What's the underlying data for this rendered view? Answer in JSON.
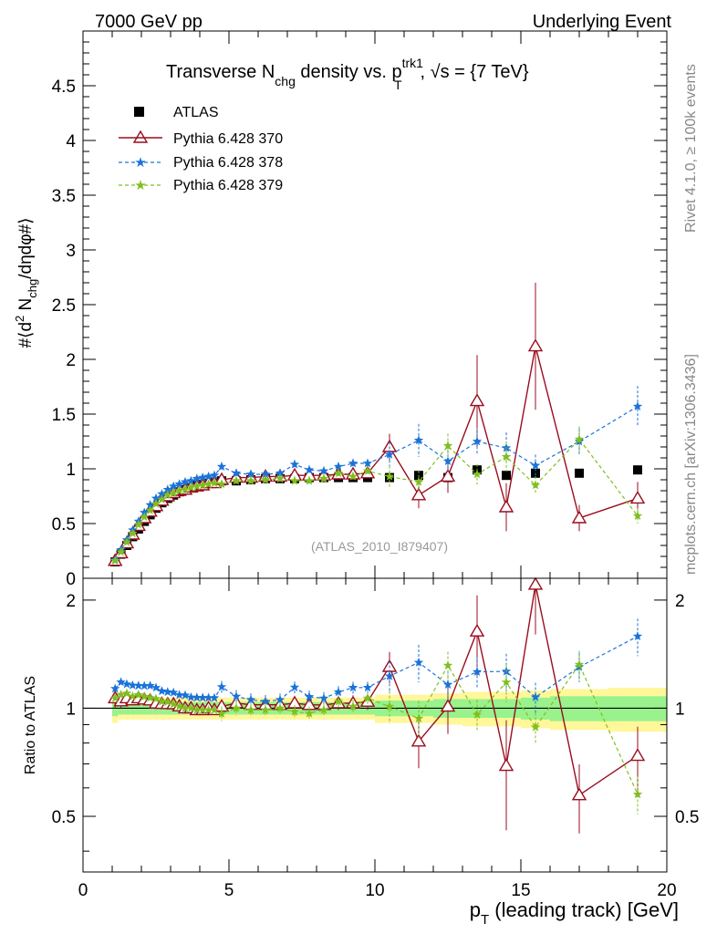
{
  "header": {
    "left": "7000 GeV pp",
    "right": "Underlying Event"
  },
  "side": {
    "rivet": "Rivet 4.1.0, ≥ 100k events",
    "mcplots": "mcplots.cern.ch [arXiv:1306.3436]"
  },
  "chart_data": {
    "type": "scatter",
    "title": {
      "part1": "Transverse N",
      "sub1": "chg",
      "part2": " density vs. p",
      "sup2": "trk1",
      "sub2": "T",
      "part3": ", √s = {7 TeV}"
    },
    "analysis_label": "(ATLAS_2010_I879407)",
    "xlabel": {
      "main": "p",
      "sub": "T",
      "rest": " (leading track) [GeV]"
    },
    "ylabel": {
      "p1": "#⟨d",
      "sup": "2",
      "p2": " N",
      "sub": "chg",
      "p3": "/dηdφ#⟩"
    },
    "ratio_ylabel": "Ratio to ATLAS",
    "xlim": [
      0,
      20
    ],
    "ylim_main": [
      0,
      5
    ],
    "ylim_ratio": [
      0.35,
      2.3
    ],
    "x_ticks": [
      "0",
      "5",
      "10",
      "15",
      "20"
    ],
    "y_ticks_main": [
      "0",
      "0.5",
      "1",
      "1.5",
      "2",
      "2.5",
      "3",
      "3.5",
      "4",
      "4.5"
    ],
    "y_ticks_ratio": [
      "0.5",
      "1",
      "2"
    ],
    "x": [
      1.1,
      1.3,
      1.5,
      1.7,
      1.9,
      2.1,
      2.3,
      2.5,
      2.7,
      2.9,
      3.1,
      3.3,
      3.5,
      3.7,
      3.9,
      4.1,
      4.3,
      4.5,
      4.75,
      5.25,
      5.75,
      6.25,
      6.75,
      7.25,
      7.75,
      8.25,
      8.75,
      9.25,
      9.75,
      10.5,
      11.5,
      12.5,
      13.5,
      14.5,
      15.5,
      17.0,
      19.0
    ],
    "x_err": [
      0.1,
      0.1,
      0.1,
      0.1,
      0.1,
      0.1,
      0.1,
      0.1,
      0.1,
      0.1,
      0.1,
      0.1,
      0.1,
      0.1,
      0.1,
      0.1,
      0.1,
      0.1,
      0.25,
      0.25,
      0.25,
      0.25,
      0.25,
      0.25,
      0.25,
      0.25,
      0.25,
      0.25,
      0.25,
      0.5,
      0.5,
      0.5,
      0.5,
      0.5,
      0.5,
      1.0,
      1.0
    ],
    "band_inner": [
      0.05,
      0.04,
      0.04,
      0.04,
      0.04,
      0.04,
      0.04,
      0.04,
      0.04,
      0.04,
      0.04,
      0.04,
      0.04,
      0.04,
      0.04,
      0.04,
      0.04,
      0.04,
      0.04,
      0.04,
      0.04,
      0.04,
      0.04,
      0.04,
      0.04,
      0.04,
      0.04,
      0.04,
      0.04,
      0.05,
      0.05,
      0.06,
      0.06,
      0.06,
      0.07,
      0.08,
      0.08
    ],
    "band_outer": [
      0.09,
      0.07,
      0.07,
      0.07,
      0.07,
      0.07,
      0.07,
      0.07,
      0.07,
      0.07,
      0.07,
      0.07,
      0.07,
      0.07,
      0.07,
      0.07,
      0.07,
      0.07,
      0.07,
      0.07,
      0.07,
      0.07,
      0.07,
      0.07,
      0.07,
      0.07,
      0.07,
      0.07,
      0.07,
      0.09,
      0.09,
      0.1,
      0.11,
      0.11,
      0.12,
      0.13,
      0.14
    ],
    "series": [
      {
        "name": "ATLAS",
        "color": "#000000",
        "marker": "square",
        "values": [
          0.15,
          0.22,
          0.3,
          0.38,
          0.45,
          0.52,
          0.58,
          0.64,
          0.69,
          0.73,
          0.76,
          0.79,
          0.81,
          0.83,
          0.85,
          0.86,
          0.87,
          0.88,
          0.89,
          0.89,
          0.9,
          0.91,
          0.91,
          0.91,
          0.92,
          0.92,
          0.92,
          0.92,
          0.92,
          0.92,
          0.94,
          0.92,
          0.99,
          0.94,
          0.96,
          0.96,
          0.99
        ]
      },
      {
        "name": "Pythia 6.428 370",
        "color": "#990d1f",
        "marker": "triangle",
        "values": [
          0.16,
          0.23,
          0.32,
          0.4,
          0.48,
          0.55,
          0.61,
          0.66,
          0.71,
          0.75,
          0.78,
          0.8,
          0.81,
          0.83,
          0.84,
          0.85,
          0.87,
          0.87,
          0.9,
          0.92,
          0.92,
          0.93,
          0.93,
          0.94,
          0.94,
          0.94,
          0.95,
          0.95,
          0.96,
          1.2,
          0.76,
          0.93,
          1.62,
          0.65,
          2.12,
          0.55,
          0.73
        ],
        "errors": [
          0.01,
          0.01,
          0.01,
          0.01,
          0.01,
          0.01,
          0.01,
          0.01,
          0.01,
          0.01,
          0.01,
          0.01,
          0.01,
          0.01,
          0.01,
          0.01,
          0.01,
          0.01,
          0.02,
          0.02,
          0.02,
          0.03,
          0.03,
          0.03,
          0.04,
          0.04,
          0.04,
          0.05,
          0.05,
          0.12,
          0.12,
          0.15,
          0.42,
          0.22,
          0.58,
          0.12,
          0.15
        ]
      },
      {
        "name": "Pythia 6.428 378",
        "color": "#1a73d9",
        "marker": "star",
        "values": [
          0.17,
          0.26,
          0.35,
          0.44,
          0.52,
          0.6,
          0.67,
          0.73,
          0.77,
          0.81,
          0.84,
          0.86,
          0.88,
          0.89,
          0.91,
          0.92,
          0.93,
          0.94,
          1.02,
          0.96,
          0.95,
          0.95,
          0.96,
          1.04,
          0.99,
          0.98,
          1.02,
          1.05,
          1.05,
          1.13,
          1.26,
          1.07,
          1.25,
          1.19,
          1.03,
          1.25,
          1.57
        ]
      },
      {
        "name": "Pythia 6.428 379",
        "color": "#7fbf1f",
        "marker": "star",
        "values": [
          0.16,
          0.24,
          0.33,
          0.41,
          0.49,
          0.56,
          0.62,
          0.68,
          0.72,
          0.76,
          0.78,
          0.8,
          0.81,
          0.83,
          0.84,
          0.85,
          0.86,
          0.87,
          0.86,
          0.89,
          0.89,
          0.9,
          0.91,
          0.89,
          0.89,
          0.91,
          0.96,
          0.93,
          0.98,
          0.93,
          0.88,
          1.21,
          0.95,
          1.11,
          0.85,
          1.27,
          0.57
        ]
      }
    ]
  }
}
